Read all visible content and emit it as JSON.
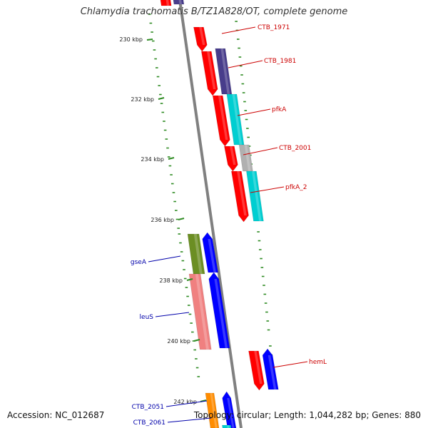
{
  "title": "Chlamydia trachomatis B/TZ1A828/OT, complete genome",
  "footer": {
    "accession": "Accession: NC_012687",
    "topology": "Topology: circular; Length: 1,044,282 bp; Genes: 880"
  },
  "colors": {
    "backbone": "#808080",
    "tick_mark": "#2e8b22",
    "forward_label": "#cc0000",
    "reverse_label": "#0000aa"
  },
  "ticks": [
    {
      "label": "230 kbp"
    },
    {
      "label": "232 kbp"
    },
    {
      "label": "234 kbp"
    },
    {
      "label": "236 kbp"
    },
    {
      "label": "238 kbp"
    },
    {
      "label": "240 kbp"
    },
    {
      "label": "242 kbp"
    }
  ],
  "forward_labels": [
    {
      "name": "CTB_1971"
    },
    {
      "name": "CTB_1981"
    },
    {
      "name": "pfkA"
    },
    {
      "name": "CTB_2001"
    },
    {
      "name": "pfkA_2"
    },
    {
      "name": "hemL"
    }
  ],
  "reverse_labels": [
    {
      "name": "gseA"
    },
    {
      "name": "leuS"
    },
    {
      "name": "CTB_2051"
    },
    {
      "name": "CTB_2061"
    }
  ],
  "genes": [
    {
      "id": "g-top-red",
      "color": "#ff0000"
    },
    {
      "id": "g-top-purple",
      "color": "#483d8b"
    },
    {
      "id": "g1",
      "color": "#ff0000"
    },
    {
      "id": "g2",
      "color": "#ff0000"
    },
    {
      "id": "g3",
      "color": "#483d8b"
    },
    {
      "id": "g4",
      "color": "#ff0000"
    },
    {
      "id": "g5",
      "color": "#00ced1"
    },
    {
      "id": "g6",
      "color": "#ff0000"
    },
    {
      "id": "g7",
      "color": "#b0b0b0"
    },
    {
      "id": "g8",
      "color": "#ff0000"
    },
    {
      "id": "g9",
      "color": "#00ced1"
    },
    {
      "id": "g10",
      "color": "#0000ff"
    },
    {
      "id": "g11",
      "color": "#6b8e23"
    },
    {
      "id": "g12",
      "color": "#0000ff"
    },
    {
      "id": "g13",
      "color": "#f08080"
    },
    {
      "id": "g14",
      "color": "#ff0000"
    },
    {
      "id": "g15",
      "color": "#0000ff"
    },
    {
      "id": "g16",
      "color": "#ff8c00"
    },
    {
      "id": "g17",
      "color": "#0000ff"
    },
    {
      "id": "g18",
      "color": "#00ced1"
    }
  ]
}
